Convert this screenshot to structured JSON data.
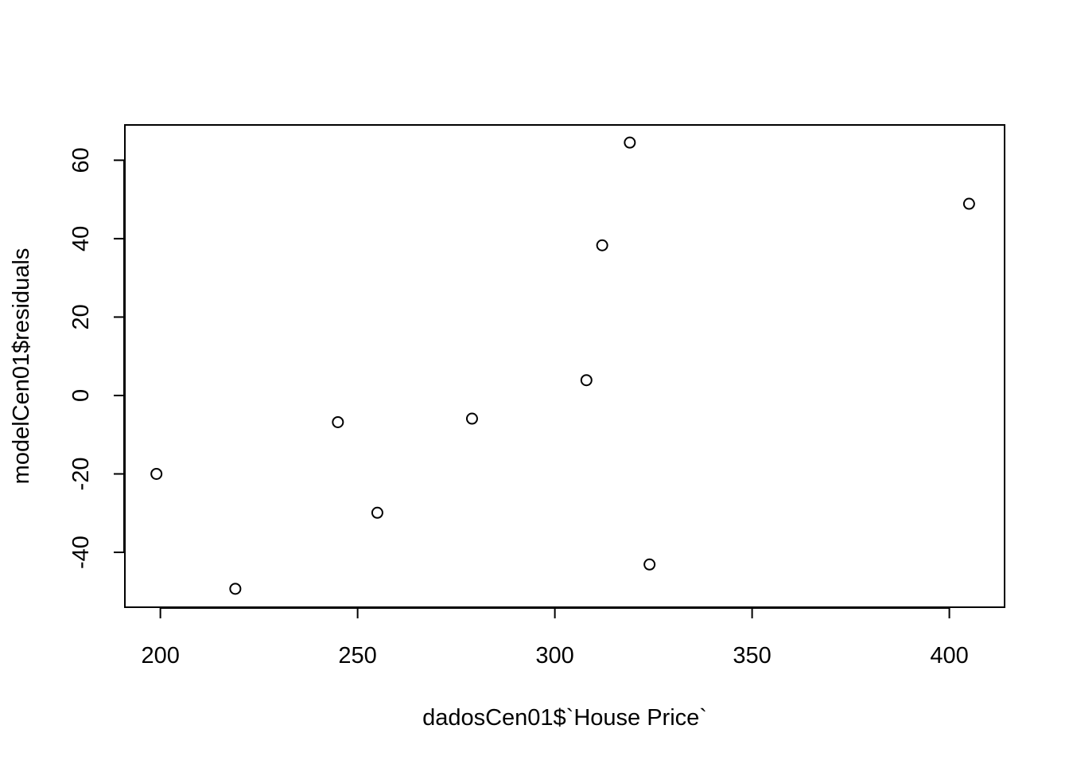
{
  "chart_data": {
    "type": "scatter",
    "title": "",
    "xlabel": "dadosCen01$`House Price`",
    "ylabel": "modelCen01$residuals",
    "xlim": [
      191,
      414
    ],
    "ylim": [
      -54,
      69
    ],
    "xticks": [
      200,
      250,
      300,
      350,
      400
    ],
    "yticks": [
      -40,
      -20,
      0,
      20,
      40,
      60
    ],
    "grid": false,
    "legend": "none",
    "marker": "open-circle",
    "color": "#000000",
    "points": [
      {
        "x": 199,
        "y": -20
      },
      {
        "x": 219,
        "y": -49.3
      },
      {
        "x": 245,
        "y": -6.8
      },
      {
        "x": 255,
        "y": -29.9
      },
      {
        "x": 279,
        "y": -5.9
      },
      {
        "x": 308,
        "y": 3.9
      },
      {
        "x": 312,
        "y": 38.3
      },
      {
        "x": 319,
        "y": 64.5
      },
      {
        "x": 324,
        "y": -43.1
      },
      {
        "x": 405,
        "y": 48.9
      }
    ]
  }
}
